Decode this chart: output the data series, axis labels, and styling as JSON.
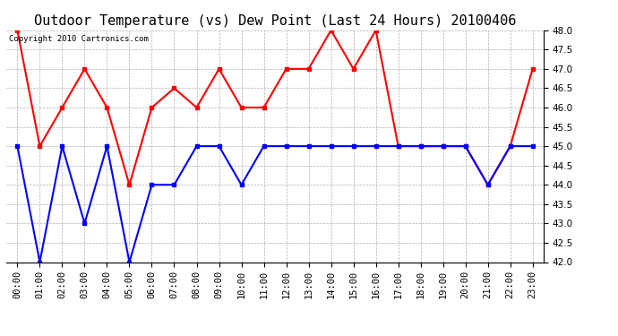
{
  "title": "Outdoor Temperature (vs) Dew Point (Last 24 Hours) 20100406",
  "copyright_text": "Copyright 2010 Cartronics.com",
  "hours": [
    "00:00",
    "01:00",
    "02:00",
    "03:00",
    "04:00",
    "05:00",
    "06:00",
    "07:00",
    "08:00",
    "09:00",
    "10:00",
    "11:00",
    "12:00",
    "13:00",
    "14:00",
    "15:00",
    "16:00",
    "17:00",
    "18:00",
    "19:00",
    "20:00",
    "21:00",
    "22:00",
    "23:00"
  ],
  "temp": [
    48.0,
    45.0,
    46.0,
    47.0,
    46.0,
    44.0,
    46.0,
    46.5,
    46.0,
    47.0,
    46.0,
    46.0,
    47.0,
    47.0,
    48.0,
    47.0,
    48.0,
    45.0,
    45.0,
    45.0,
    45.0,
    44.0,
    45.0,
    47.0
  ],
  "dew": [
    45.0,
    42.0,
    45.0,
    43.0,
    45.0,
    42.0,
    44.0,
    44.0,
    45.0,
    45.0,
    44.0,
    45.0,
    45.0,
    45.0,
    45.0,
    45.0,
    45.0,
    45.0,
    45.0,
    45.0,
    45.0,
    44.0,
    45.0,
    45.0
  ],
  "temp_color": "#ff0000",
  "dew_color": "#0000ff",
  "ylim": [
    42.0,
    48.0
  ],
  "ytick_step": 0.5,
  "bg_color": "#ffffff",
  "plot_bg_color": "#ffffff",
  "grid_color": "#b0b0b0",
  "title_fontsize": 11,
  "tick_fontsize": 7.5,
  "marker": "s",
  "marker_size": 3,
  "line_width": 1.5
}
